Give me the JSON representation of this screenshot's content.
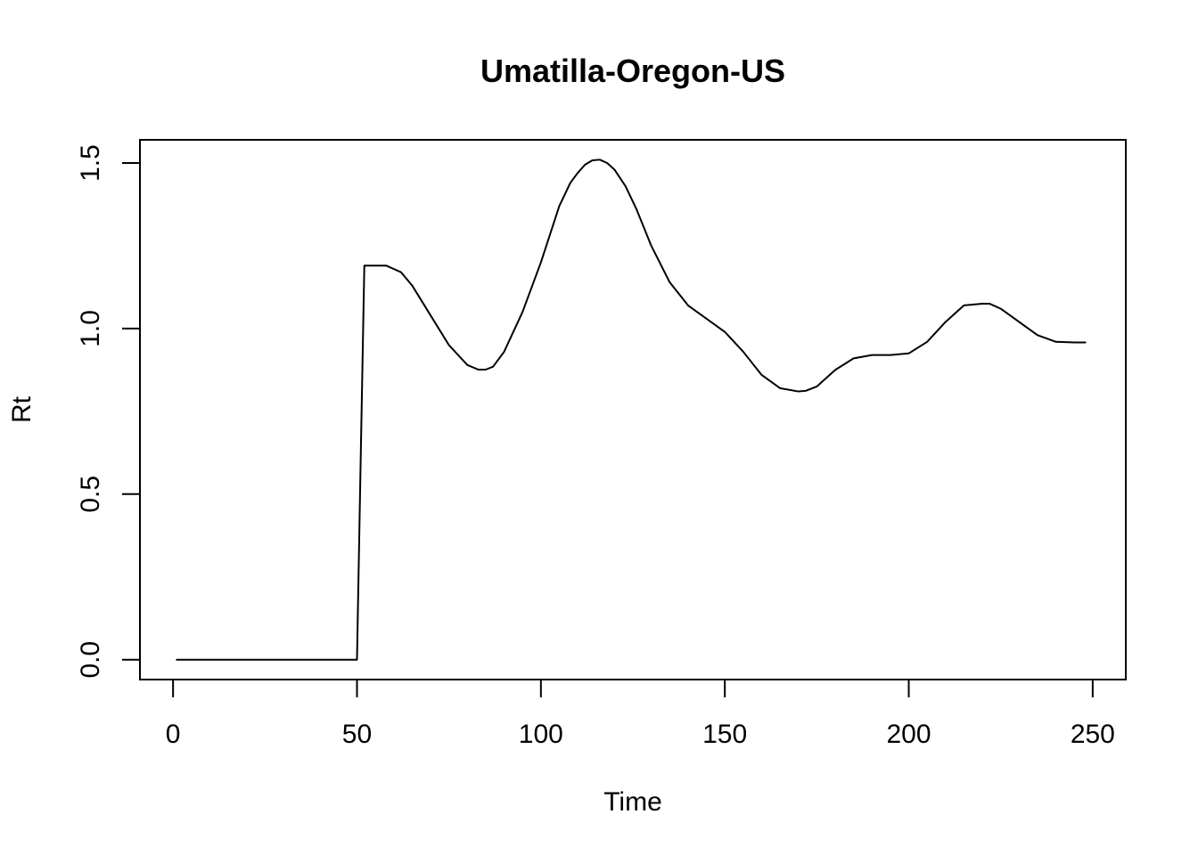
{
  "chart_data": {
    "type": "line",
    "title": "Umatilla-Oregon-US",
    "xlabel": "Time",
    "ylabel": "Rt",
    "xlim": [
      -9,
      259
    ],
    "ylim": [
      -0.06,
      1.57
    ],
    "x_ticks": [
      0,
      50,
      100,
      150,
      200,
      250
    ],
    "x_tick_labels": [
      "0",
      "50",
      "100",
      "150",
      "200",
      "250"
    ],
    "y_ticks": [
      0.0,
      0.5,
      1.0,
      1.5
    ],
    "y_tick_labels": [
      "0.0",
      "0.5",
      "1.0",
      "1.5"
    ],
    "grid": false,
    "legend": "none",
    "line_color": "#000000",
    "series": [
      {
        "x": [
          1,
          10,
          20,
          30,
          40,
          50,
          51,
          52,
          55,
          58,
          60,
          62,
          65,
          70,
          75,
          80,
          83,
          85,
          87,
          90,
          95,
          100,
          105,
          108,
          110,
          112,
          114,
          116,
          118,
          120,
          123,
          126,
          130,
          135,
          140,
          145,
          150,
          155,
          160,
          165,
          170,
          172,
          175,
          180,
          185,
          190,
          195,
          200,
          205,
          210,
          215,
          220,
          222,
          225,
          230,
          235,
          240,
          245,
          248
        ],
        "values": [
          0.0,
          0.0,
          0.0,
          0.0,
          0.0,
          0.0,
          0.6,
          1.19,
          1.19,
          1.19,
          1.18,
          1.17,
          1.13,
          1.04,
          0.95,
          0.89,
          0.876,
          0.876,
          0.885,
          0.93,
          1.05,
          1.2,
          1.37,
          1.44,
          1.47,
          1.495,
          1.508,
          1.51,
          1.5,
          1.48,
          1.43,
          1.36,
          1.25,
          1.14,
          1.07,
          1.03,
          0.99,
          0.93,
          0.86,
          0.82,
          0.81,
          0.812,
          0.825,
          0.875,
          0.91,
          0.92,
          0.92,
          0.925,
          0.96,
          1.02,
          1.07,
          1.075,
          1.075,
          1.06,
          1.02,
          0.98,
          0.96,
          0.958,
          0.958
        ]
      }
    ]
  }
}
